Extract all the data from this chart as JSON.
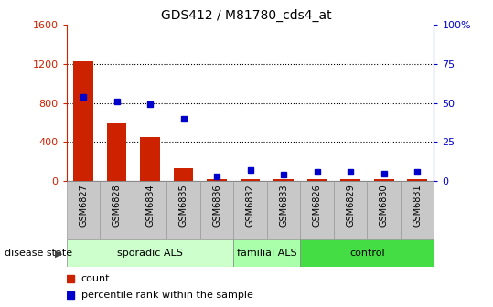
{
  "title": "GDS412 / M81780_cds4_at",
  "samples": [
    "GSM6827",
    "GSM6828",
    "GSM6834",
    "GSM6835",
    "GSM6836",
    "GSM6832",
    "GSM6833",
    "GSM6826",
    "GSM6829",
    "GSM6830",
    "GSM6831"
  ],
  "counts": [
    1230,
    590,
    450,
    130,
    20,
    20,
    20,
    20,
    20,
    20,
    20
  ],
  "percentiles": [
    54,
    51,
    49,
    40,
    3,
    7,
    4,
    6,
    6,
    5,
    6
  ],
  "groups": [
    {
      "label": "sporadic ALS",
      "start": 0,
      "end": 5,
      "color": "#ccffcc"
    },
    {
      "label": "familial ALS",
      "start": 5,
      "end": 7,
      "color": "#aaffaa"
    },
    {
      "label": "control",
      "start": 7,
      "end": 11,
      "color": "#44dd44"
    }
  ],
  "ylim_left": [
    0,
    1600
  ],
  "ylim_right": [
    0,
    100
  ],
  "yticks_left": [
    0,
    400,
    800,
    1200,
    1600
  ],
  "yticks_right": [
    0,
    25,
    50,
    75,
    100
  ],
  "bar_color": "#cc2200",
  "dot_color": "#0000cc",
  "background_color": "#ffffff",
  "grid_color": "#000000",
  "sample_bg_color": "#c8c8c8",
  "disease_state_label": "disease state",
  "legend_items": [
    {
      "label": "count",
      "color": "#cc2200"
    },
    {
      "label": "percentile rank within the sample",
      "color": "#0000cc"
    }
  ]
}
